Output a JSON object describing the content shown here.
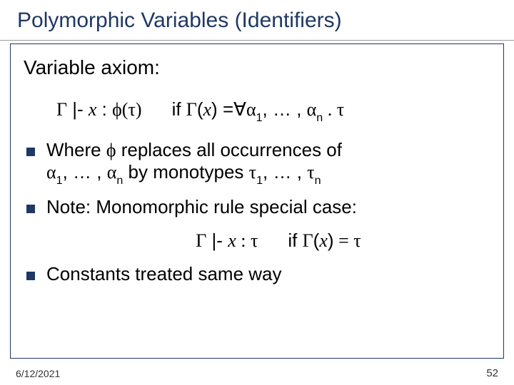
{
  "title": "Polymorphic Variables (Identifiers)",
  "axiom_label": "Variable axiom:",
  "rule1": {
    "judgment_gamma": "Γ",
    "turnstile": " |- ",
    "var": "x",
    "colon": " : ",
    "phi": "ϕ(τ)",
    "cond_prefix": "if ",
    "gamma2": "Γ",
    "of_x": "(x)",
    "eq": " =",
    "forall": "∀",
    "alpha": "α",
    "sub1": "1",
    "dots": ", … , ",
    "alpha2": "α",
    "subn": "n",
    "dot_tau": " . τ"
  },
  "bullet1": {
    "p1": "Where ",
    "phi": "ϕ",
    "p2": " replaces all occurrences of ",
    "alpha": "α",
    "s1": "1",
    "dots": ", … , ",
    "alpha2": "α",
    "sn": "n",
    "mid": "   by monotypes ",
    "tau": "τ",
    "ts1": "1",
    "dots2": ", … , ",
    "tau2": "τ",
    "tsn": "n"
  },
  "bullet2": "Note: Monomorphic rule special case:",
  "rule2": {
    "gamma": "Γ",
    "turnstile": " |- ",
    "var": "x",
    "colon_tau": " : τ",
    "cond_prefix": "if ",
    "gamma2": "Γ",
    "of_x": "(x)",
    "eq_tau": " = τ"
  },
  "bullet3": "Constants treated same way",
  "footer": {
    "date": "6/12/2021",
    "page": "52"
  },
  "colors": {
    "title": "#1f3864",
    "bullet": "#1f3864",
    "border": "#1f3864"
  }
}
